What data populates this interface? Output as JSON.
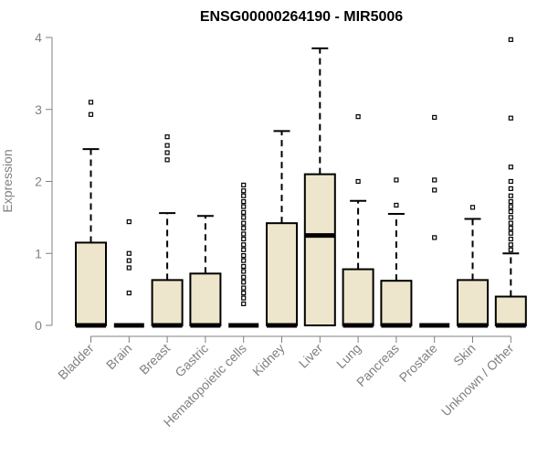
{
  "chart_data": {
    "type": "box",
    "title": "ENSG00000264190 - MIR5006",
    "xlabel": "",
    "ylabel": "Expression",
    "ylim": [
      0,
      4
    ],
    "yticks": [
      0,
      1,
      2,
      3,
      4
    ],
    "box_fill": "#ede6cc",
    "box_stroke": "#000000",
    "axis_color": "#808080",
    "categories": [
      "Bladder",
      "Brain",
      "Breast",
      "Gastric",
      "Hematopoietic cells",
      "Kidney",
      "Liver",
      "Lung",
      "Pancreas",
      "Prostate",
      "Skin",
      "Unknown / Other"
    ],
    "boxes": [
      {
        "category": "Bladder",
        "q1": 0,
        "median": 0,
        "q3": 1.15,
        "whisker_low": 0,
        "whisker_high": 2.45,
        "outliers": [
          2.93,
          3.1
        ]
      },
      {
        "category": "Brain",
        "q1": 0,
        "median": 0,
        "q3": 0,
        "whisker_low": 0,
        "whisker_high": 0,
        "outliers": [
          0.45,
          0.8,
          0.9,
          1.0,
          1.44
        ]
      },
      {
        "category": "Breast",
        "q1": 0,
        "median": 0,
        "q3": 0.63,
        "whisker_low": 0,
        "whisker_high": 1.56,
        "outliers": [
          2.3,
          2.4,
          2.5,
          2.62
        ]
      },
      {
        "category": "Gastric",
        "q1": 0,
        "median": 0,
        "q3": 0.72,
        "whisker_low": 0,
        "whisker_high": 1.52,
        "outliers": []
      },
      {
        "category": "Hematopoietic cells",
        "q1": 0,
        "median": 0,
        "q3": 0,
        "whisker_low": 0,
        "whisker_high": 0,
        "outliers": [
          0.3,
          0.38,
          0.45,
          0.52,
          0.6,
          0.67,
          0.75,
          0.82,
          0.9,
          0.97,
          1.05,
          1.12,
          1.2,
          1.27,
          1.35,
          1.42,
          1.5,
          1.57,
          1.65,
          1.72,
          1.8,
          1.87,
          1.95
        ]
      },
      {
        "category": "Kidney",
        "q1": 0,
        "median": 0,
        "q3": 1.42,
        "whisker_low": 0,
        "whisker_high": 2.7,
        "outliers": []
      },
      {
        "category": "Liver",
        "q1": 0,
        "median": 1.25,
        "q3": 2.1,
        "whisker_low": 0,
        "whisker_high": 3.85,
        "outliers": []
      },
      {
        "category": "Lung",
        "q1": 0,
        "median": 0,
        "q3": 0.78,
        "whisker_low": 0,
        "whisker_high": 1.73,
        "outliers": [
          2.0,
          2.9
        ]
      },
      {
        "category": "Pancreas",
        "q1": 0,
        "median": 0,
        "q3": 0.62,
        "whisker_low": 0,
        "whisker_high": 1.55,
        "outliers": [
          1.67,
          2.02
        ]
      },
      {
        "category": "Prostate",
        "q1": 0,
        "median": 0,
        "q3": 0,
        "whisker_low": 0,
        "whisker_high": 0,
        "outliers": [
          1.22,
          1.88,
          2.02,
          2.89
        ]
      },
      {
        "category": "Skin",
        "q1": 0,
        "median": 0,
        "q3": 0.63,
        "whisker_low": 0,
        "whisker_high": 1.48,
        "outliers": [
          1.64
        ]
      },
      {
        "category": "Unknown / Other",
        "q1": 0,
        "median": 0,
        "q3": 0.4,
        "whisker_low": 0,
        "whisker_high": 1.0,
        "outliers": [
          1.05,
          1.12,
          1.2,
          1.28,
          1.35,
          1.42,
          1.5,
          1.58,
          1.65,
          1.72,
          1.8,
          1.9,
          2.0,
          2.2,
          2.88,
          3.97
        ]
      }
    ]
  }
}
